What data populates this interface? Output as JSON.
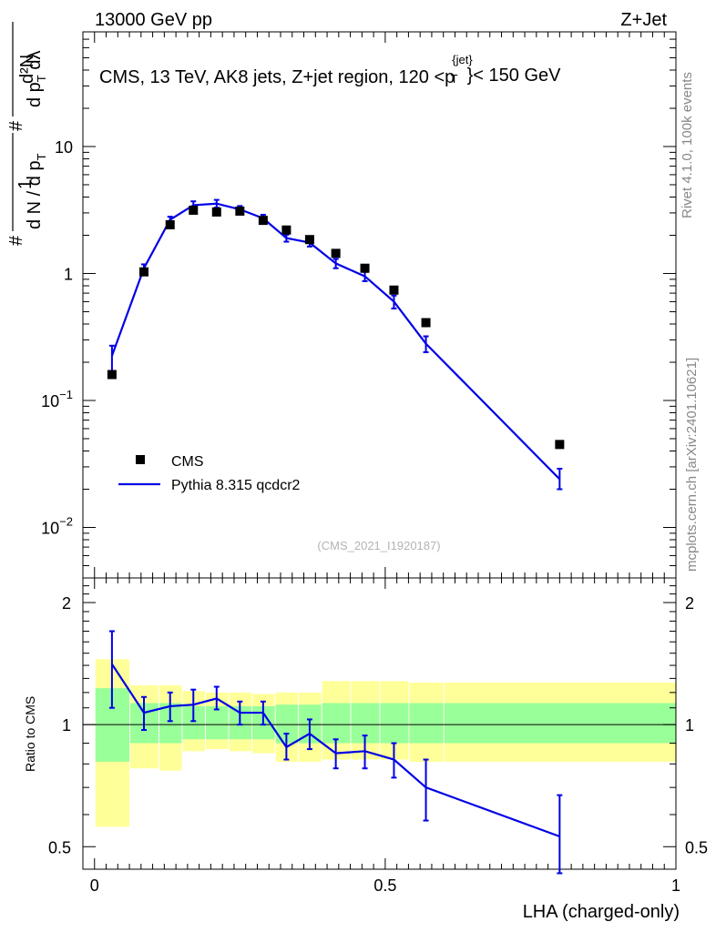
{
  "header": {
    "energy_label": "13000 GeV pp",
    "process_label": "Z+Jet"
  },
  "side_labels": {
    "rivet": "Rivet 4.1.0,  100k events",
    "mcplots": "mcplots.cern.ch [arXiv:2401.10621]"
  },
  "plot": {
    "title_main": "CMS, 13 TeV, AK8 jets, Z+jet region, 120 <p",
    "title_sup": "{jet}",
    "title_sub": "T",
    "title_end": "}< 150 GeV",
    "watermark": "(CMS_2021_I1920187)",
    "ylabel": {
      "hash": "#",
      "one": "1",
      "dN": "d N / d p",
      "dN_sub": "T",
      "hash2": "#",
      "num": "d²N",
      "den": "d p",
      "den_sub": "T",
      "den_end": " dλ"
    },
    "ratio_ylabel": "Ratio to CMS",
    "xlabel": "LHA (charged-only)"
  },
  "chart_data": {
    "type": "scatter",
    "title": "CMS, 13 TeV, AK8 jets, Z+jet region, 120 < pT(jet) < 150 GeV",
    "xlabel": "LHA (charged-only)",
    "ylabel": "(1/dN/dpT) d²N/dpT dλ",
    "xlim": [
      -0.02,
      1.0
    ],
    "main_ylog": true,
    "main_ylim": [
      0.004,
      80
    ],
    "main_yticks": [
      {
        "value": 0.01,
        "base": "10",
        "exp": "−2"
      },
      {
        "value": 0.1,
        "base": "10",
        "exp": "−1"
      },
      {
        "value": 1,
        "base": "1",
        "exp": ""
      },
      {
        "value": 10,
        "base": "10",
        "exp": ""
      }
    ],
    "ratio_ylog": true,
    "ratio_ylim": [
      0.44,
      2.3
    ],
    "ratio_yticks": [
      {
        "value": 0.5,
        "label": "0.5"
      },
      {
        "value": 1,
        "label": "1"
      },
      {
        "value": 2,
        "label": "2"
      }
    ],
    "xticks": [
      {
        "value": 0,
        "label": "0"
      },
      {
        "value": 0.5,
        "label": "0.5"
      },
      {
        "value": 1,
        "label": "1"
      }
    ],
    "bin_edges": [
      0,
      0.06,
      0.11,
      0.15,
      0.19,
      0.23,
      0.27,
      0.31,
      0.35,
      0.39,
      0.44,
      0.49,
      0.54,
      0.6,
      1.0
    ],
    "x": [
      0.03,
      0.085,
      0.13,
      0.17,
      0.21,
      0.25,
      0.29,
      0.33,
      0.37,
      0.415,
      0.465,
      0.515,
      0.57,
      0.8
    ],
    "series": [
      {
        "name": "CMS",
        "color": "#000000",
        "values": [
          0.16,
          1.03,
          2.42,
          3.15,
          3.05,
          3.1,
          2.62,
          2.2,
          1.85,
          1.44,
          1.1,
          0.74,
          0.41,
          0.045
        ]
      },
      {
        "name": "Pythia 8.315 qcdcr2",
        "color": "#0000e6",
        "values": [
          0.225,
          1.1,
          2.65,
          3.45,
          3.55,
          3.2,
          2.72,
          1.9,
          1.75,
          1.2,
          0.95,
          0.6,
          0.28,
          0.024
        ],
        "err_low": [
          0.17,
          1.01,
          2.5,
          3.2,
          3.3,
          3.0,
          2.55,
          1.78,
          1.63,
          1.1,
          0.87,
          0.53,
          0.24,
          0.02
        ],
        "err_high": [
          0.27,
          1.18,
          2.8,
          3.7,
          3.8,
          3.4,
          2.9,
          2.02,
          1.87,
          1.3,
          1.03,
          0.67,
          0.32,
          0.029
        ]
      }
    ],
    "ratio": {
      "values": [
        1.41,
        1.07,
        1.11,
        1.12,
        1.16,
        1.07,
        1.07,
        0.88,
        0.95,
        0.85,
        0.86,
        0.82,
        0.7,
        0.53
      ],
      "err_low": [
        1.1,
        0.97,
        1.02,
        1.02,
        1.09,
        1.0,
        1.0,
        0.82,
        0.87,
        0.78,
        0.78,
        0.74,
        0.58,
        0.43
      ],
      "err_high": [
        1.7,
        1.17,
        1.2,
        1.22,
        1.24,
        1.14,
        1.14,
        0.95,
        1.03,
        0.92,
        0.94,
        0.9,
        0.82,
        0.67
      ],
      "band_inner_low": [
        0.81,
        0.9,
        0.9,
        0.92,
        0.92,
        0.92,
        0.92,
        0.9,
        0.9,
        0.9,
        0.9,
        0.9,
        0.9,
        0.9
      ],
      "band_inner_high": [
        1.23,
        1.13,
        1.13,
        1.11,
        1.11,
        1.11,
        1.11,
        1.12,
        1.12,
        1.13,
        1.13,
        1.13,
        1.13,
        1.13
      ],
      "band_outer_low": [
        0.56,
        0.78,
        0.77,
        0.86,
        0.87,
        0.86,
        0.85,
        0.81,
        0.81,
        0.82,
        0.82,
        0.82,
        0.81,
        0.81
      ],
      "band_outer_high": [
        1.45,
        1.25,
        1.25,
        1.21,
        1.2,
        1.2,
        1.19,
        1.2,
        1.2,
        1.28,
        1.28,
        1.28,
        1.27,
        1.27
      ],
      "band_inner_color": "#99ff99",
      "band_outer_color": "#ffff99"
    },
    "legend": {
      "position": "bottom-left",
      "entries": [
        {
          "label": "CMS",
          "marker": "square",
          "color": "#000000"
        },
        {
          "label": "Pythia 8.315 qcdcr2",
          "marker": "line",
          "color": "#0000e6"
        }
      ]
    }
  }
}
